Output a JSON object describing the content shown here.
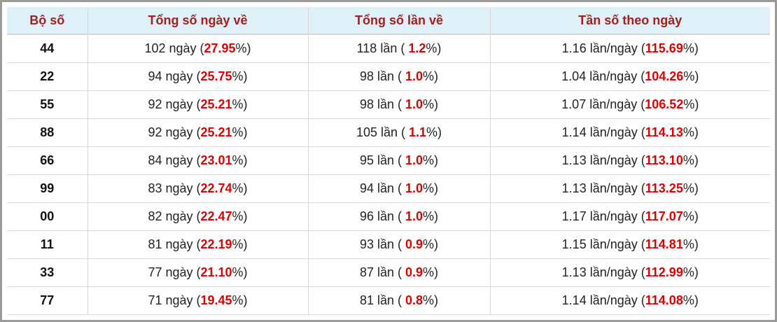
{
  "table": {
    "header": [
      "Bộ số",
      "Tổng số ngày về",
      "Tổng số lần về",
      "Tần số theo ngày"
    ],
    "rows": [
      [
        "44",
        [
          "102 ngày (",
          "27.95",
          "%)"
        ],
        [
          "118 lần ( ",
          "1.2",
          "%)"
        ],
        [
          "1.16 lần/ngày (",
          "115.69",
          "%)"
        ]
      ],
      [
        "22",
        [
          "94 ngày (",
          "25.75",
          "%)"
        ],
        [
          "98 lần ( ",
          "1.0",
          "%)"
        ],
        [
          "1.04 lần/ngày (",
          "104.26",
          "%)"
        ]
      ],
      [
        "55",
        [
          "92 ngày (",
          "25.21",
          "%)"
        ],
        [
          "98 lần ( ",
          "1.0",
          "%)"
        ],
        [
          "1.07 lần/ngày (",
          "106.52",
          "%)"
        ]
      ],
      [
        "88",
        [
          "92 ngày (",
          "25.21",
          "%)"
        ],
        [
          "105 lần ( ",
          "1.1",
          "%)"
        ],
        [
          "1.14 lần/ngày (",
          "114.13",
          "%)"
        ]
      ],
      [
        "66",
        [
          "84 ngày (",
          "23.01",
          "%)"
        ],
        [
          "95 lần ( ",
          "1.0",
          "%)"
        ],
        [
          "1.13 lần/ngày (",
          "113.10",
          "%)"
        ]
      ],
      [
        "99",
        [
          "83 ngày (",
          "22.74",
          "%)"
        ],
        [
          "94 lần ( ",
          "1.0",
          "%)"
        ],
        [
          "1.13 lần/ngày (",
          "113.25",
          "%)"
        ]
      ],
      [
        "00",
        [
          "82 ngày (",
          "22.47",
          "%)"
        ],
        [
          "96 lần ( ",
          "1.0",
          "%)"
        ],
        [
          "1.17 lần/ngày (",
          "117.07",
          "%)"
        ]
      ],
      [
        "11",
        [
          "81 ngày (",
          "22.19",
          "%)"
        ],
        [
          "93 lần ( ",
          "0.9",
          "%)"
        ],
        [
          "1.15 lần/ngày (",
          "114.81",
          "%)"
        ]
      ],
      [
        "33",
        [
          "77 ngày (",
          "21.10",
          "%)"
        ],
        [
          "87 lần ( ",
          "0.9",
          "%)"
        ],
        [
          "1.13 lần/ngày (",
          "112.99",
          "%)"
        ]
      ],
      [
        "77",
        [
          "71 ngày (",
          "19.45",
          "%)"
        ],
        [
          "81 lần ( ",
          "0.8",
          "%)"
        ],
        [
          "1.14 lần/ngày (",
          "114.08",
          "%)"
        ]
      ]
    ]
  }
}
